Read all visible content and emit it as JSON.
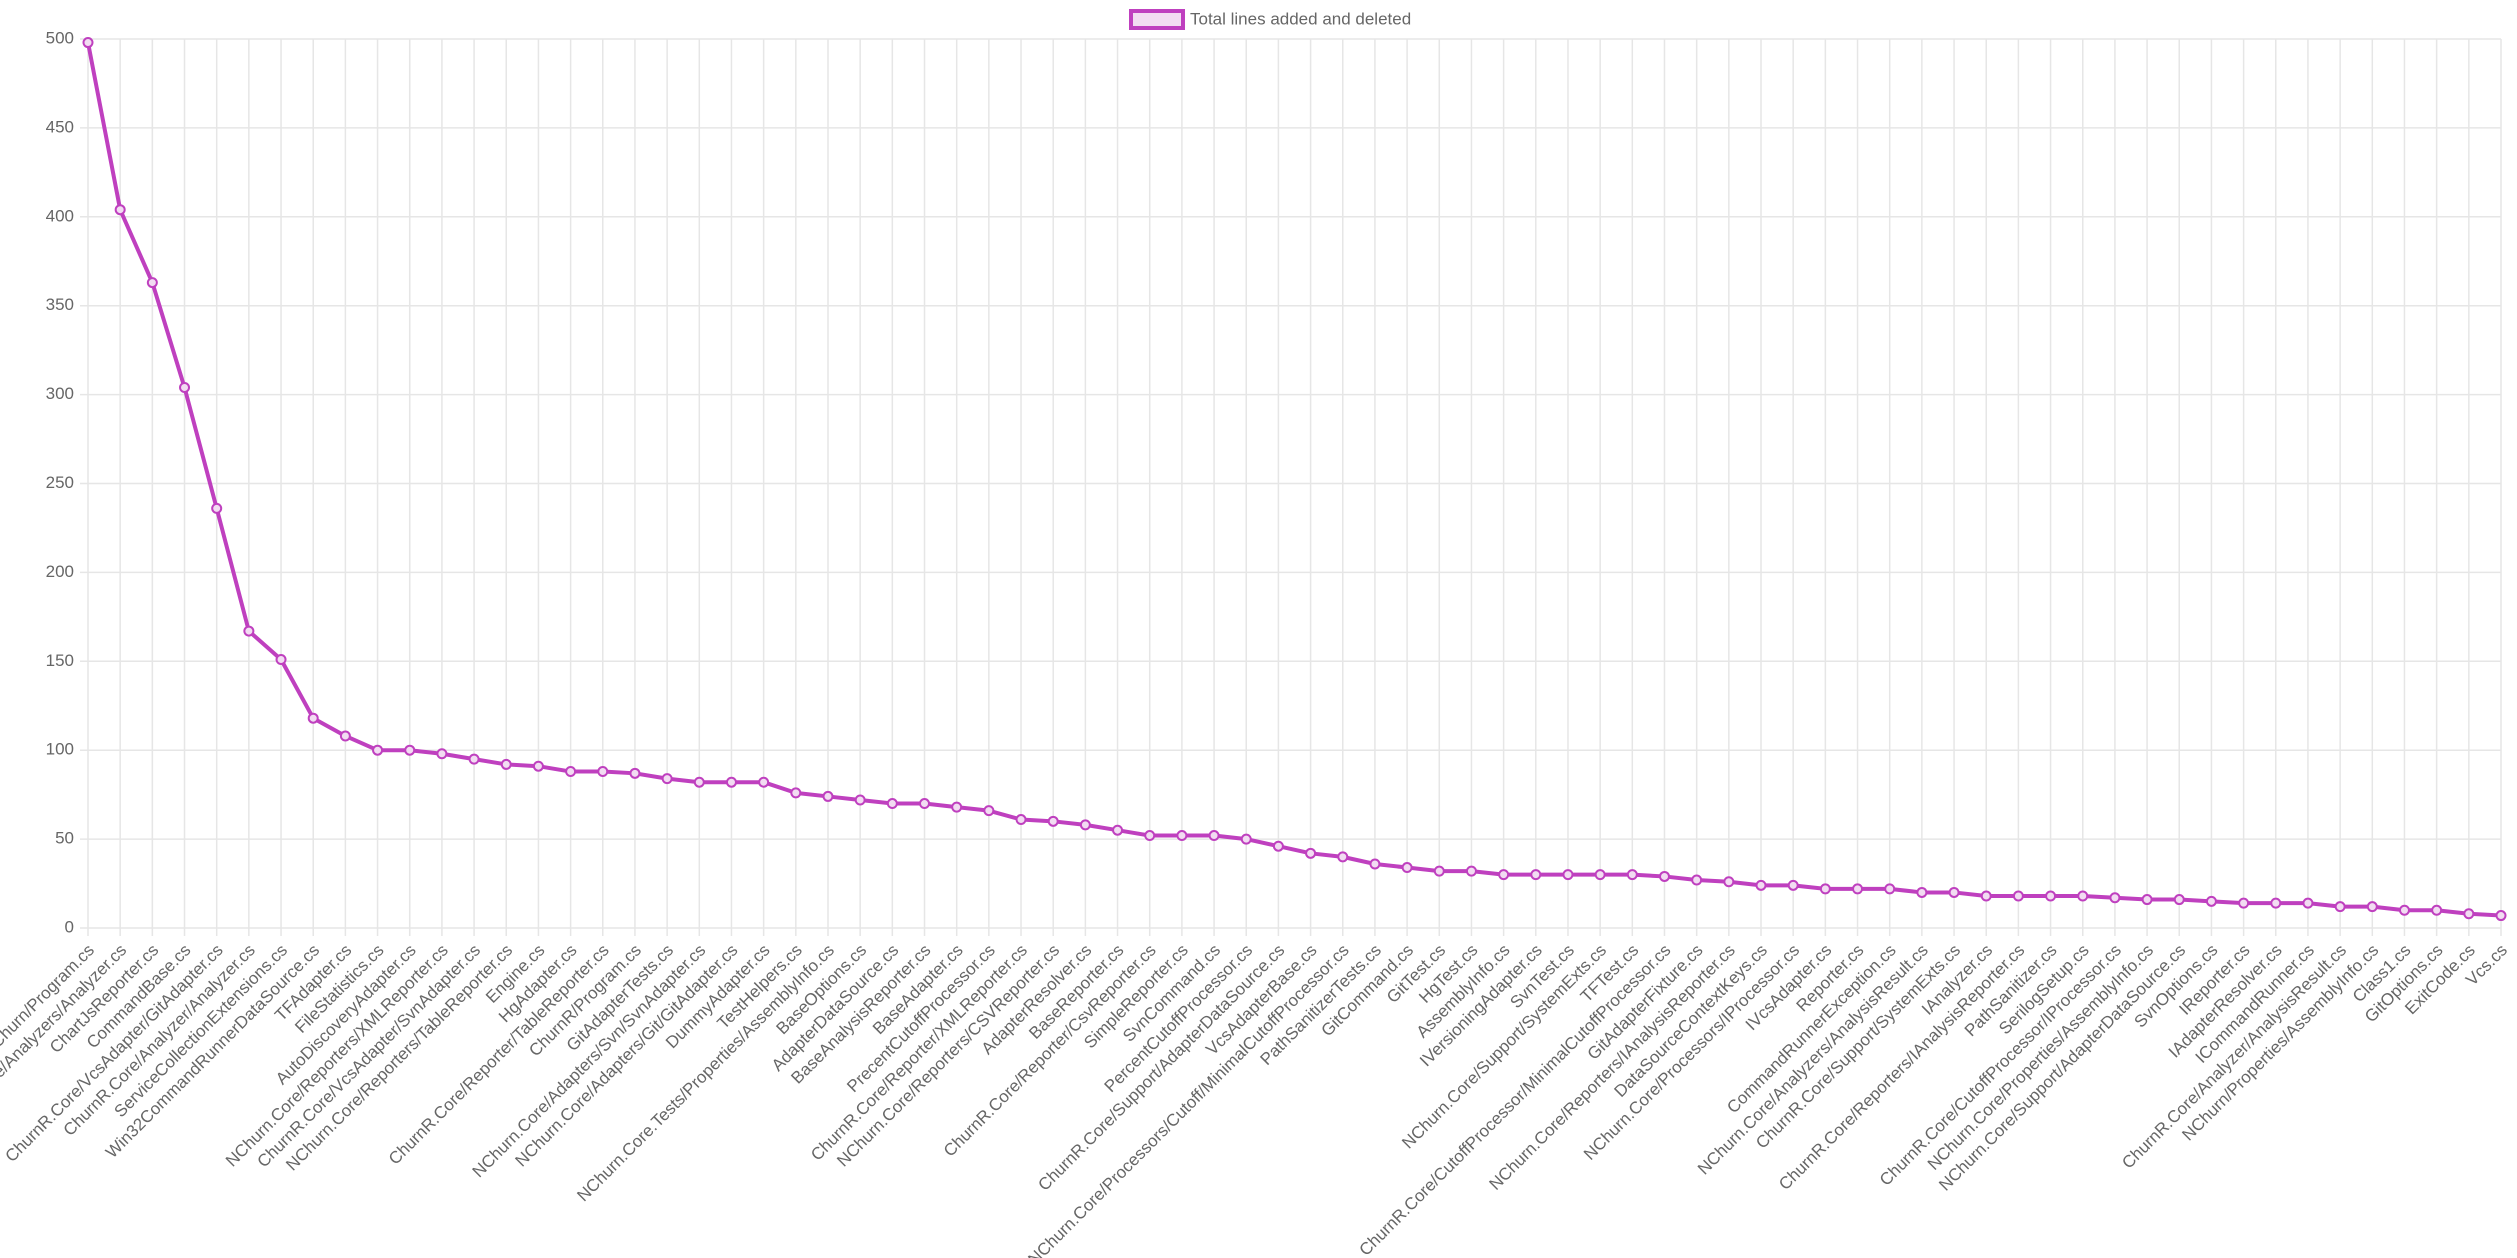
{
  "chart_data": {
    "type": "line",
    "categories": [
      "NChurn/Program.cs",
      "NChurn.Core/Analyzers/Analyzer.cs",
      "ChartJsReporter.cs",
      "CommandBase.cs",
      "ChurnR.Core/VcsAdapter/GitAdapter.cs",
      "ChurnR.Core/Analyzer/Analyzer.cs",
      "ServiceCollectionExtensions.cs",
      "Win32CommandRunnerDataSource.cs",
      "TFAdapter.cs",
      "FileStatistics.cs",
      "AutoDiscoveryAdapter.cs",
      "NChurn.Core/Reporters/XMLReporter.cs",
      "ChurnR.Core/VcsAdapter/SvnAdapter.cs",
      "NChurn.Core/Reporters/TableReporter.cs",
      "Engine.cs",
      "HgAdapter.cs",
      "ChurnR.Core/Reporter/TableReporter.cs",
      "ChurnR/Program.cs",
      "GitAdapterTests.cs",
      "NChurn.Core/Adapters/Svn/SvnAdapter.cs",
      "NChurn.Core/Adapters/Git/GitAdapter.cs",
      "DummyAdapter.cs",
      "TestHelpers.cs",
      "NChurn.Core.Tests/Properties/AssemblyInfo.cs",
      "BaseOptions.cs",
      "AdapterDataSource.cs",
      "BaseAnalysisReporter.cs",
      "BaseAdapter.cs",
      "PrecentCutoffProcessor.cs",
      "ChurnR.Core/Reporter/XMLReporter.cs",
      "NChurn.Core/Reporters/CSVReporter.cs",
      "AdapterResolver.cs",
      "BaseReporter.cs",
      "ChurnR.Core/Reporter/CsvReporter.cs",
      "SimpleReporter.cs",
      "SvnCommand.cs",
      "PercentCutoffProcessor.cs",
      "ChurnR.Core/Support/AdapterDataSource.cs",
      "VcsAdapterBase.cs",
      "NChurn.Core/Processors/Cutoff/MinimalCutoffProcessor.cs",
      "PathSanitizerTests.cs",
      "GitCommand.cs",
      "GitTest.cs",
      "HgTest.cs",
      "AssemblyInfo.cs",
      "IVersioningAdapter.cs",
      "SvnTest.cs",
      "NChurn.Core/Support/SystemExts.cs",
      "TFTest.cs",
      "ChurnR.Core/CutoffProcessor/MinimalCutoffProcessor.cs",
      "GitAdapterFixture.cs",
      "NChurn.Core/Reporters/IAnalysisReporter.cs",
      "DataSourceContextKeys.cs",
      "NChurn.Core/Processors/IProcessor.cs",
      "IVcsAdapter.cs",
      "Reporter.cs",
      "CommandRunnerException.cs",
      "NChurn.Core/Analyzers/AnalysisResult.cs",
      "ChurnR.Core/Support/SystemExts.cs",
      "IAnalyzer.cs",
      "ChurnR.Core/Reporters/IAnalysisReporter.cs",
      "PathSanitizer.cs",
      "SerilogSetup.cs",
      "ChurnR.Core/CutoffProcessor/IProcessor.cs",
      "NChurn.Core/Properties/AssemblyInfo.cs",
      "NChurn.Core/Support/AdapterDataSource.cs",
      "SvnOptions.cs",
      "IReporter.cs",
      "IAdapterResolver.cs",
      "ICommandRunner.cs",
      "ChurnR.Core/Analyzer/AnalysisResult.cs",
      "NChurn/Properties/AssemblyInfo.cs",
      "Class1.cs",
      "GitOptions.cs",
      "ExitCode.cs",
      "Vcs.cs"
    ],
    "series": [
      {
        "name": "Total lines added and deleted",
        "color": "#bf40bf",
        "values": [
          498,
          404,
          363,
          304,
          236,
          167,
          151,
          118,
          108,
          100,
          100,
          98,
          95,
          92,
          91,
          88,
          88,
          87,
          84,
          82,
          82,
          82,
          76,
          74,
          72,
          70,
          70,
          68,
          66,
          61,
          60,
          58,
          55,
          52,
          52,
          52,
          50,
          46,
          42,
          40,
          36,
          34,
          32,
          32,
          30,
          30,
          30,
          30,
          30,
          29,
          27,
          26,
          24,
          24,
          22,
          22,
          22,
          20,
          20,
          18,
          18,
          18,
          18,
          17,
          16,
          16,
          15,
          14,
          14,
          14,
          12,
          12,
          10,
          10,
          8,
          7
        ]
      }
    ],
    "ylim": [
      0,
      500
    ],
    "yticks": [
      0,
      50,
      100,
      150,
      200,
      250,
      300,
      350,
      400,
      450,
      500
    ],
    "grid": true,
    "legend": "top"
  }
}
